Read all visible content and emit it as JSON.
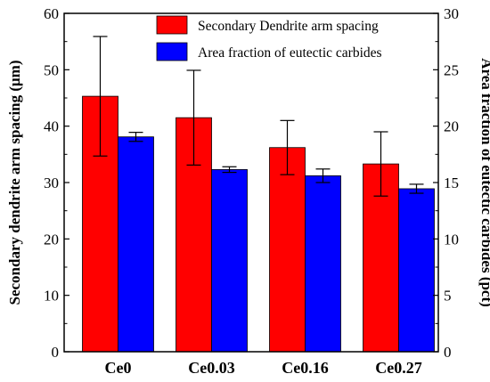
{
  "chart_data": {
    "type": "bar",
    "categories": [
      "Ce0",
      "Ce0.03",
      "Ce0.16",
      "Ce0.27"
    ],
    "ylabel_left": "Secondary dendrite arm spacing (μm)",
    "ylabel_right": "Area fraction of eutectic carbides (pct)",
    "ylim_left": [
      0,
      60
    ],
    "ylim_right": [
      0,
      30
    ],
    "yticks_left": [
      "0",
      "10",
      "20",
      "30",
      "40",
      "50",
      "60"
    ],
    "yticks_right": [
      "0",
      "5",
      "10",
      "15",
      "20",
      "25",
      "30"
    ],
    "legend_position": "top-right",
    "grid": false,
    "series": [
      {
        "name": "Secondary Dendrite arm spacing",
        "axis": "left",
        "color": "#ff0000",
        "values": [
          45.3,
          41.5,
          36.2,
          33.3
        ],
        "error": [
          10.6,
          8.4,
          4.8,
          5.7
        ]
      },
      {
        "name": "Area fraction of eutectic carbides",
        "axis": "right",
        "color": "#0000ff",
        "values": [
          19.05,
          16.15,
          15.6,
          14.45
        ],
        "error": [
          0.4,
          0.25,
          0.6,
          0.4
        ]
      }
    ]
  }
}
